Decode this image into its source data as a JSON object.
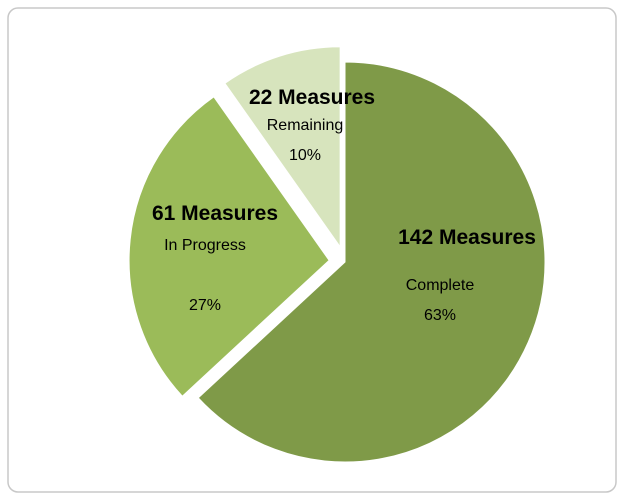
{
  "chart_data": {
    "type": "pie",
    "categories": [
      "Complete",
      "In Progress",
      "Remaining"
    ],
    "values": [
      142,
      61,
      22
    ],
    "value_labels": [
      "142 Measures",
      "61 Measures",
      "22 Measures"
    ],
    "percent_labels": [
      "63%",
      "27%",
      "10%"
    ],
    "colors": [
      "#7f9a48",
      "#9bbb59",
      "#d7e4bd"
    ],
    "exploded": [
      false,
      true,
      true
    ]
  }
}
